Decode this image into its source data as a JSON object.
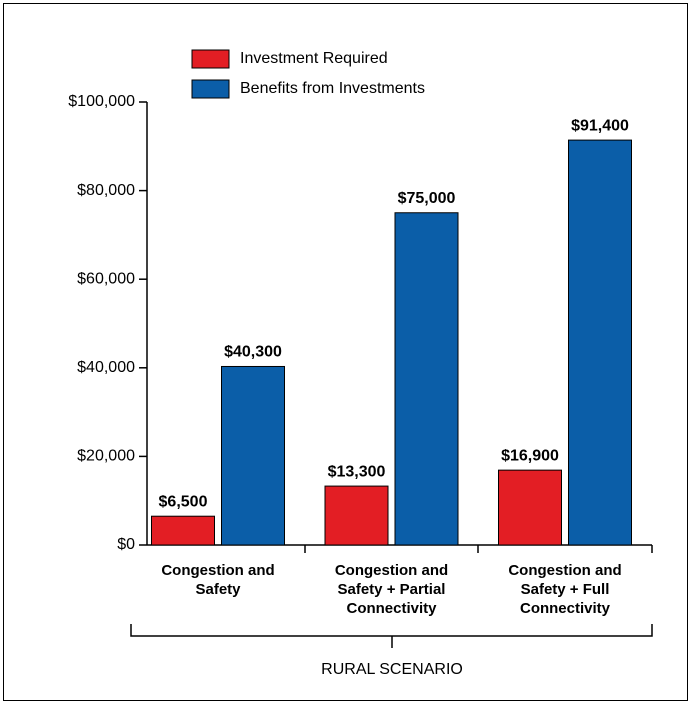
{
  "chart_data": {
    "type": "bar",
    "categories": [
      "Congestion and Safety",
      "Congestion and Safety + Partial Connectivity",
      "Congestion and Safety + Full Connectivity"
    ],
    "series": [
      {
        "name": "Investment Required",
        "color": "#e31e24",
        "values": [
          6500,
          13300,
          16900
        ],
        "value_labels": [
          "$6,500",
          "$13,300",
          "$16,900"
        ]
      },
      {
        "name": "Benefits from Investments",
        "color": "#0b5ea8",
        "values": [
          40300,
          75000,
          91400
        ],
        "value_labels": [
          "$40,300",
          "$75,000",
          "$91,400"
        ]
      }
    ],
    "ylim": [
      0,
      100000
    ],
    "yticks": [
      {
        "value": 0,
        "label": "$0"
      },
      {
        "value": 20000,
        "label": "$20,000"
      },
      {
        "value": 40000,
        "label": "$40,000"
      },
      {
        "value": 60000,
        "label": "$60,000"
      },
      {
        "value": 80000,
        "label": "$80,000"
      },
      {
        "value": 100000,
        "label": "$100,000"
      }
    ],
    "annotation": "RURAL SCENARIO",
    "legend": "top"
  }
}
